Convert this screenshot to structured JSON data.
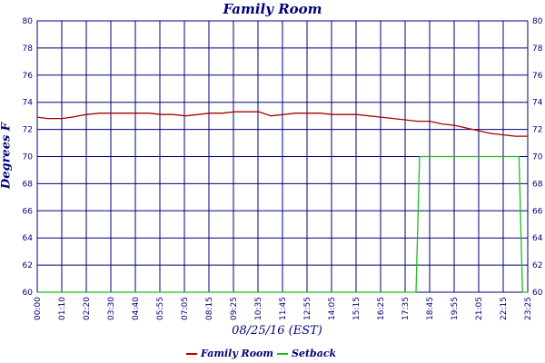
{
  "colors": {
    "grid": "#00007b",
    "family_room": "#a80000",
    "setback": "#1cbe1c"
  },
  "chart_data": {
    "type": "line",
    "title": "Family Room",
    "xlabel": "08/25/16 (EST)",
    "ylabel": "Degrees F",
    "ylim": [
      60,
      80
    ],
    "yticks": [
      60,
      62,
      64,
      66,
      68,
      70,
      72,
      74,
      76,
      78,
      80
    ],
    "xticks": [
      "00:00",
      "01:10",
      "02:20",
      "03:30",
      "04:40",
      "05:55",
      "07:05",
      "08:15",
      "09:25",
      "10:35",
      "11:45",
      "12:55",
      "14:05",
      "15:15",
      "16:25",
      "17:35",
      "18:45",
      "19:55",
      "21:05",
      "22:15",
      "23:25"
    ],
    "x_range": [
      "00:00",
      "23:25"
    ],
    "grid": true,
    "legend_position": "bottom",
    "series": [
      {
        "name": "Family Room",
        "color": "#a80000",
        "x": [
          "00:00",
          "00:30",
          "01:10",
          "01:40",
          "02:20",
          "03:00",
          "03:30",
          "04:00",
          "04:40",
          "05:20",
          "05:55",
          "06:30",
          "07:05",
          "07:40",
          "08:15",
          "08:50",
          "09:25",
          "10:00",
          "10:35",
          "11:10",
          "11:45",
          "12:20",
          "12:55",
          "13:30",
          "14:05",
          "14:40",
          "15:15",
          "15:50",
          "16:25",
          "17:00",
          "17:35",
          "18:10",
          "18:45",
          "19:20",
          "19:55",
          "20:30",
          "21:05",
          "21:40",
          "22:15",
          "22:50",
          "23:25"
        ],
        "y": [
          72.9,
          72.8,
          72.8,
          72.9,
          73.1,
          73.2,
          73.2,
          73.2,
          73.2,
          73.2,
          73.1,
          73.1,
          73.0,
          73.1,
          73.2,
          73.2,
          73.3,
          73.3,
          73.3,
          73.0,
          73.1,
          73.2,
          73.2,
          73.2,
          73.1,
          73.1,
          73.1,
          73.0,
          72.9,
          72.8,
          72.7,
          72.6,
          72.6,
          72.4,
          72.3,
          72.1,
          71.9,
          71.7,
          71.6,
          71.5,
          71.5
        ]
      },
      {
        "name": "Setback",
        "color": "#1cbe1c",
        "x": [
          "00:00",
          "18:05",
          "18:15",
          "23:00",
          "23:10",
          "23:25"
        ],
        "y": [
          60,
          60,
          70,
          70,
          60,
          60
        ]
      }
    ]
  }
}
